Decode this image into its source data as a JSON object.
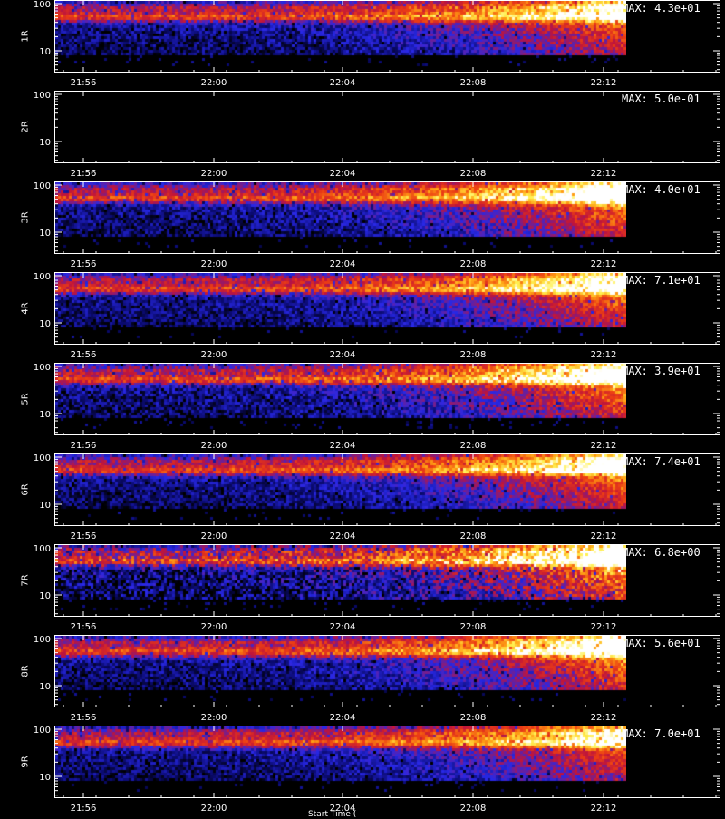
{
  "chart_data": {
    "type": "heatmap",
    "x_ticks": [
      "21:56",
      "22:00",
      "22:04",
      "22:08",
      "22:12"
    ],
    "y_ticks": [
      "100",
      "10"
    ],
    "y_scale": "log",
    "colormap": "black-blue-red-yellow-white",
    "x_axis_title": "Start Time (",
    "panels": [
      {
        "label": "1R",
        "max": "MAX: 4.3e+01",
        "has_data": true,
        "intensity": 0.75,
        "noise": 0.55
      },
      {
        "label": "2R",
        "max": "MAX: 5.0e-01",
        "has_data": false,
        "intensity": 0.0,
        "noise": 0.0
      },
      {
        "label": "3R",
        "max": "MAX: 4.0e+01",
        "has_data": true,
        "intensity": 0.85,
        "noise": 0.55
      },
      {
        "label": "4R",
        "max": "MAX: 7.1e+01",
        "has_data": true,
        "intensity": 0.8,
        "noise": 0.5
      },
      {
        "label": "5R",
        "max": "MAX: 3.9e+01",
        "has_data": true,
        "intensity": 0.85,
        "noise": 0.6
      },
      {
        "label": "6R",
        "max": "MAX: 7.4e+01",
        "has_data": true,
        "intensity": 0.8,
        "noise": 0.5
      },
      {
        "label": "7R",
        "max": "MAX: 6.8e+00",
        "has_data": true,
        "intensity": 0.9,
        "noise": 0.85
      },
      {
        "label": "8R",
        "max": "MAX: 5.6e+01",
        "has_data": true,
        "intensity": 0.85,
        "noise": 0.55
      },
      {
        "label": "9R",
        "max": "MAX: 7.0e+01",
        "has_data": true,
        "intensity": 0.7,
        "noise": 0.5
      }
    ]
  }
}
